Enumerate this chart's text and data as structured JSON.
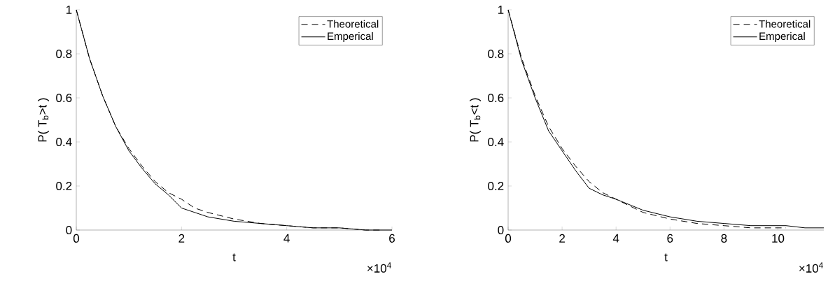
{
  "chart_data": [
    {
      "type": "line",
      "xlabel": "t",
      "ylabel": "P( T$_{b}$>t )",
      "annotations": [
        "×10$^{4}$"
      ],
      "xlim": [
        0,
        6
      ],
      "ylim": [
        0,
        1
      ],
      "xticks": [
        0,
        2,
        4,
        6
      ],
      "yticks": [
        0,
        0.2,
        0.4,
        0.6,
        0.8,
        1
      ],
      "legend": "top right",
      "series": [
        {
          "name": "Theoretical",
          "color": "#000000",
          "line_style": "dashed",
          "x": [
            0,
            0.25,
            0.5,
            0.75,
            1,
            1.25,
            1.5,
            1.75,
            2,
            2.25,
            2.5,
            3,
            3.5,
            4,
            4.5,
            5,
            5.5,
            5.8
          ],
          "values": [
            1,
            0.78,
            0.61,
            0.47,
            0.37,
            0.29,
            0.22,
            0.17,
            0.14,
            0.1,
            0.08,
            0.05,
            0.03,
            0.02,
            0.01,
            0.01,
            0,
            0
          ]
        },
        {
          "name": "Emperical",
          "color": "#000000",
          "line_style": "solid",
          "x": [
            0,
            0.25,
            0.5,
            0.75,
            1,
            1.25,
            1.5,
            1.75,
            2,
            2.25,
            2.5,
            3,
            3.5,
            4,
            4.5,
            5,
            5.5,
            6
          ],
          "values": [
            1,
            0.78,
            0.61,
            0.47,
            0.36,
            0.28,
            0.21,
            0.16,
            0.1,
            0.08,
            0.06,
            0.04,
            0.03,
            0.02,
            0.01,
            0.01,
            0,
            0
          ]
        }
      ]
    },
    {
      "type": "line",
      "xlabel": "t",
      "ylabel": "P( T$_{b}$<t )",
      "annotations": [
        "×10$^{4}$"
      ],
      "xlim": [
        0,
        11.7
      ],
      "ylim": [
        0,
        1
      ],
      "xticks": [
        0,
        2,
        4,
        6,
        8,
        10
      ],
      "yticks": [
        0,
        0.2,
        0.4,
        0.6,
        0.8,
        1
      ],
      "legend": "top right",
      "series": [
        {
          "name": "Theoretical",
          "color": "#000000",
          "line_style": "dashed",
          "x": [
            0,
            0.5,
            1,
            1.5,
            2,
            2.5,
            3,
            3.5,
            4,
            5,
            6,
            7,
            8,
            9,
            10,
            10.3
          ],
          "values": [
            1,
            0.78,
            0.61,
            0.47,
            0.37,
            0.29,
            0.22,
            0.17,
            0.14,
            0.08,
            0.05,
            0.03,
            0.02,
            0.01,
            0.01,
            0.01
          ]
        },
        {
          "name": "Emperical",
          "color": "#000000",
          "line_style": "solid",
          "x": [
            0,
            0.5,
            1,
            1.5,
            2,
            2.5,
            3,
            3.5,
            4,
            5,
            6,
            7,
            8,
            9,
            10,
            10.3,
            11,
            11.7
          ],
          "values": [
            1,
            0.77,
            0.6,
            0.45,
            0.36,
            0.27,
            0.19,
            0.16,
            0.14,
            0.09,
            0.06,
            0.04,
            0.03,
            0.02,
            0.02,
            0.02,
            0.01,
            0.01
          ]
        }
      ]
    }
  ]
}
